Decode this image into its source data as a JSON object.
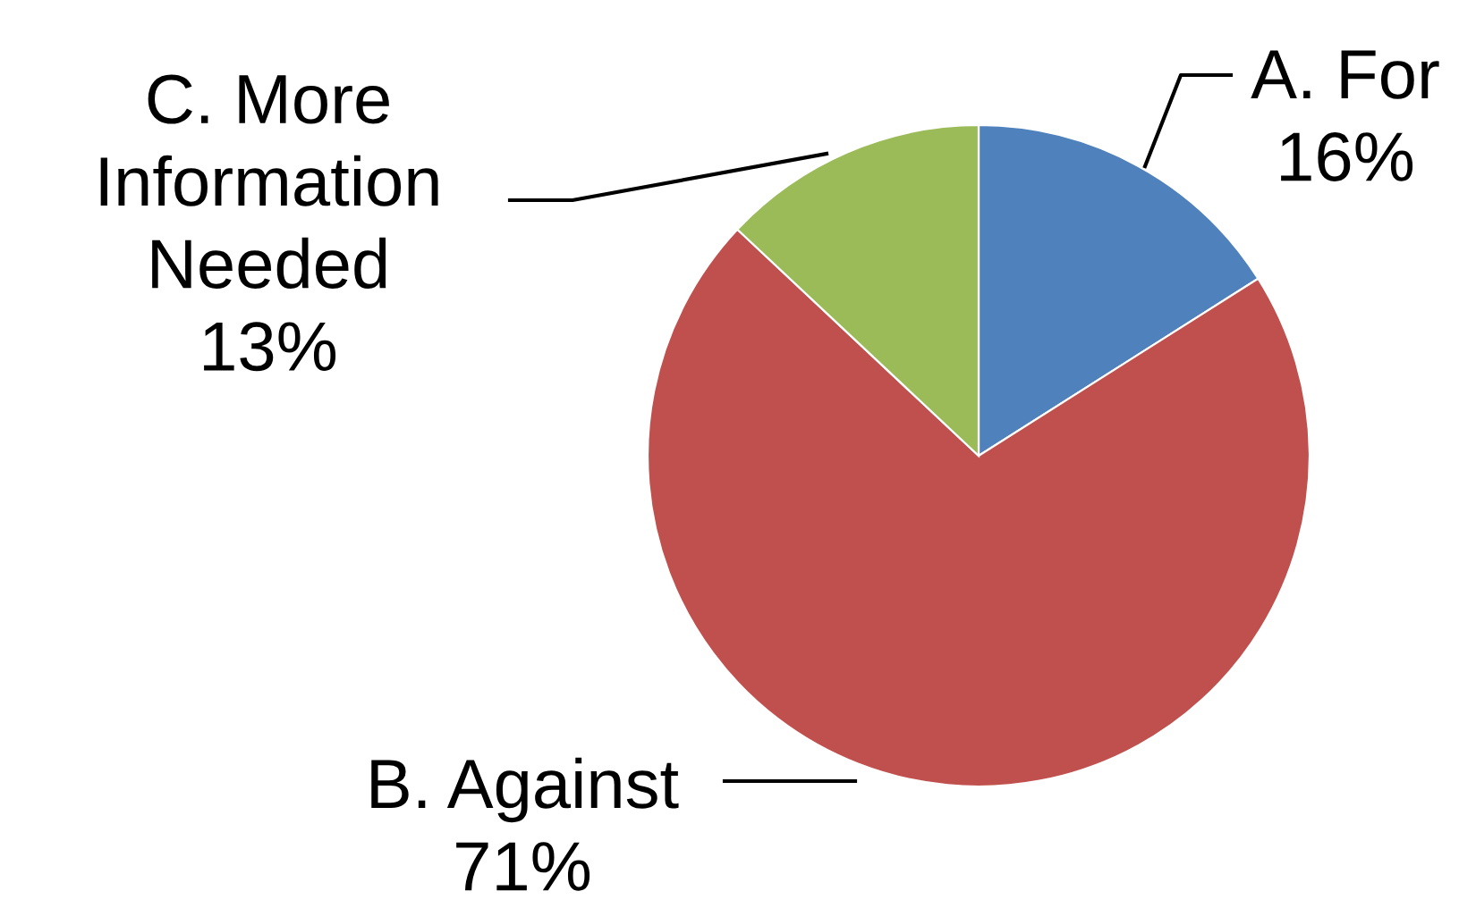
{
  "chart_data": {
    "type": "pie",
    "categories": [
      "A. For",
      "B. Against",
      "C. More\nInformation\nNeeded"
    ],
    "values": [
      16,
      71,
      13
    ],
    "value_labels": [
      "16%",
      "71%",
      "13%"
    ],
    "colors": [
      "#4f81bd",
      "#c0504d",
      "#9bbb59"
    ],
    "legend": false
  }
}
